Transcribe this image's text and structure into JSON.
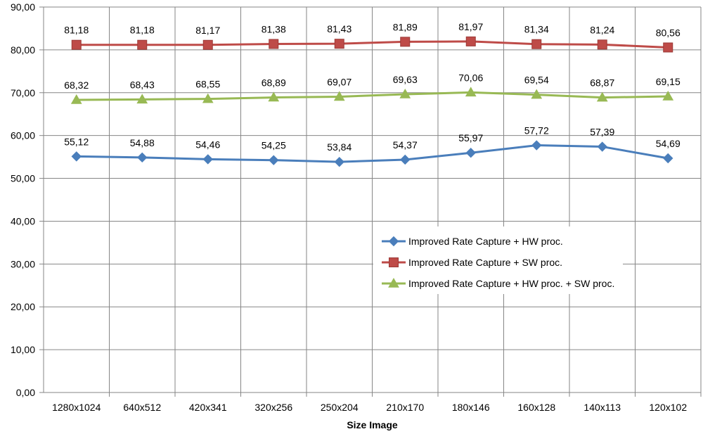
{
  "chart_data": {
    "type": "line",
    "title": "",
    "xlabel": "Size Image",
    "ylabel": "",
    "ylim": [
      0,
      90
    ],
    "yticks": [
      "0,00",
      "10,00",
      "20,00",
      "30,00",
      "40,00",
      "50,00",
      "60,00",
      "70,00",
      "80,00",
      "90,00"
    ],
    "categories": [
      "1280x1024",
      "640x512",
      "420x341",
      "320x256",
      "250x204",
      "210x170",
      "180x146",
      "160x128",
      "140x113",
      "120x102"
    ],
    "grid": true,
    "legend_position": "right",
    "series": [
      {
        "name": "Improved Rate Capture + HW proc.",
        "color": "#4a7ebb",
        "marker": "diamond",
        "values": [
          55.12,
          54.88,
          54.46,
          54.25,
          53.84,
          54.37,
          55.97,
          57.72,
          57.39,
          54.69
        ],
        "labels": [
          "55,12",
          "54,88",
          "54,46",
          "54,25",
          "53,84",
          "54,37",
          "55,97",
          "57,72",
          "57,39",
          "54,69"
        ]
      },
      {
        "name": "Improved Rate Capture + SW proc.",
        "color": "#be4b48",
        "marker": "square",
        "values": [
          81.18,
          81.18,
          81.17,
          81.38,
          81.43,
          81.89,
          81.97,
          81.34,
          81.24,
          80.56
        ],
        "labels": [
          "81,18",
          "81,18",
          "81,17",
          "81,38",
          "81,43",
          "81,89",
          "81,97",
          "81,34",
          "81,24",
          "80,56"
        ]
      },
      {
        "name": "Improved Rate Capture + HW proc. + SW proc.",
        "color": "#98b954",
        "marker": "triangle",
        "values": [
          68.32,
          68.43,
          68.55,
          68.89,
          69.07,
          69.63,
          70.06,
          69.54,
          68.87,
          69.15
        ],
        "labels": [
          "68,32",
          "68,43",
          "68,55",
          "68,89",
          "69,07",
          "69,63",
          "70,06",
          "69,54",
          "68,87",
          "69,15"
        ]
      }
    ]
  }
}
